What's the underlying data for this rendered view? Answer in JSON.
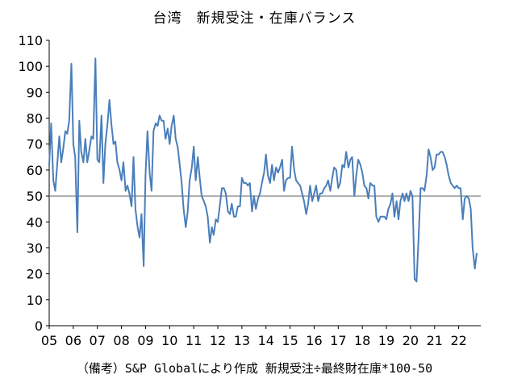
{
  "chart_data": {
    "type": "line",
    "title": "台湾　新規受注・在庫バランス",
    "note": "（備考）S&P Globalにより作成 新規受注÷最終財在庫*100-50",
    "xlabel": "",
    "ylabel": "",
    "ylim": [
      0,
      110
    ],
    "y_ticks": [
      0,
      10,
      20,
      30,
      40,
      50,
      60,
      70,
      80,
      90,
      100,
      110
    ],
    "x_tick_labels": [
      "05",
      "06",
      "07",
      "08",
      "09",
      "10",
      "11",
      "12",
      "13",
      "14",
      "15",
      "16",
      "17",
      "18",
      "19",
      "20",
      "21",
      "22"
    ],
    "x_range": [
      2005.0,
      2022.9167
    ],
    "reference_line": 50,
    "grid": false,
    "legend": "none",
    "line_color": "#4a7ebb",
    "reference_color": "#808080",
    "series": [
      {
        "color": "#4a7ebb",
        "points": [
          [
            2005.0,
            62
          ],
          [
            2005.08,
            78
          ],
          [
            2005.17,
            56
          ],
          [
            2005.25,
            52
          ],
          [
            2005.33,
            62
          ],
          [
            2005.42,
            73
          ],
          [
            2005.5,
            63
          ],
          [
            2005.58,
            68
          ],
          [
            2005.67,
            75
          ],
          [
            2005.75,
            74
          ],
          [
            2005.83,
            79
          ],
          [
            2005.92,
            101
          ],
          [
            2006.0,
            70
          ],
          [
            2006.08,
            65
          ],
          [
            2006.17,
            36
          ],
          [
            2006.25,
            79
          ],
          [
            2006.33,
            67
          ],
          [
            2006.42,
            63
          ],
          [
            2006.5,
            72
          ],
          [
            2006.58,
            63
          ],
          [
            2006.67,
            68
          ],
          [
            2006.75,
            73
          ],
          [
            2006.83,
            72
          ],
          [
            2006.92,
            103
          ],
          [
            2007.0,
            64
          ],
          [
            2007.08,
            63
          ],
          [
            2007.17,
            81
          ],
          [
            2007.25,
            55
          ],
          [
            2007.33,
            70
          ],
          [
            2007.42,
            78
          ],
          [
            2007.5,
            87
          ],
          [
            2007.58,
            78
          ],
          [
            2007.67,
            70
          ],
          [
            2007.75,
            71
          ],
          [
            2007.83,
            63
          ],
          [
            2007.92,
            60
          ],
          [
            2008.0,
            56
          ],
          [
            2008.08,
            63
          ],
          [
            2008.17,
            52
          ],
          [
            2008.25,
            54
          ],
          [
            2008.33,
            51
          ],
          [
            2008.42,
            46
          ],
          [
            2008.5,
            65
          ],
          [
            2008.58,
            45
          ],
          [
            2008.67,
            38
          ],
          [
            2008.75,
            34
          ],
          [
            2008.83,
            43
          ],
          [
            2008.92,
            23
          ],
          [
            2009.0,
            58
          ],
          [
            2009.08,
            75
          ],
          [
            2009.17,
            59
          ],
          [
            2009.25,
            52
          ],
          [
            2009.33,
            75
          ],
          [
            2009.42,
            78
          ],
          [
            2009.5,
            77
          ],
          [
            2009.58,
            81
          ],
          [
            2009.67,
            79
          ],
          [
            2009.75,
            79
          ],
          [
            2009.83,
            72
          ],
          [
            2009.92,
            76
          ],
          [
            2010.0,
            70
          ],
          [
            2010.08,
            77
          ],
          [
            2010.17,
            81
          ],
          [
            2010.25,
            72
          ],
          [
            2010.33,
            69
          ],
          [
            2010.42,
            62
          ],
          [
            2010.5,
            55
          ],
          [
            2010.58,
            45
          ],
          [
            2010.67,
            38
          ],
          [
            2010.75,
            44
          ],
          [
            2010.83,
            56
          ],
          [
            2010.92,
            61
          ],
          [
            2011.0,
            69
          ],
          [
            2011.08,
            56
          ],
          [
            2011.17,
            65
          ],
          [
            2011.25,
            57
          ],
          [
            2011.33,
            50
          ],
          [
            2011.42,
            48
          ],
          [
            2011.5,
            46
          ],
          [
            2011.58,
            42
          ],
          [
            2011.67,
            32
          ],
          [
            2011.75,
            38
          ],
          [
            2011.83,
            35
          ],
          [
            2011.92,
            41
          ],
          [
            2012.0,
            40
          ],
          [
            2012.08,
            46
          ],
          [
            2012.17,
            53
          ],
          [
            2012.25,
            53
          ],
          [
            2012.33,
            51
          ],
          [
            2012.42,
            44
          ],
          [
            2012.5,
            43
          ],
          [
            2012.58,
            47
          ],
          [
            2012.67,
            42
          ],
          [
            2012.75,
            42
          ],
          [
            2012.83,
            46
          ],
          [
            2012.92,
            46
          ],
          [
            2013.0,
            57
          ],
          [
            2013.08,
            55
          ],
          [
            2013.17,
            55
          ],
          [
            2013.25,
            54
          ],
          [
            2013.33,
            55
          ],
          [
            2013.42,
            44
          ],
          [
            2013.5,
            50
          ],
          [
            2013.58,
            45
          ],
          [
            2013.67,
            49
          ],
          [
            2013.75,
            51
          ],
          [
            2013.83,
            55
          ],
          [
            2013.92,
            59
          ],
          [
            2014.0,
            66
          ],
          [
            2014.08,
            58
          ],
          [
            2014.17,
            55
          ],
          [
            2014.25,
            62
          ],
          [
            2014.33,
            56
          ],
          [
            2014.42,
            61
          ],
          [
            2014.5,
            59
          ],
          [
            2014.58,
            61
          ],
          [
            2014.67,
            64
          ],
          [
            2014.75,
            52
          ],
          [
            2014.83,
            56
          ],
          [
            2014.92,
            57
          ],
          [
            2015.0,
            57
          ],
          [
            2015.08,
            69
          ],
          [
            2015.17,
            60
          ],
          [
            2015.25,
            56
          ],
          [
            2015.33,
            55
          ],
          [
            2015.42,
            54
          ],
          [
            2015.5,
            51
          ],
          [
            2015.58,
            48
          ],
          [
            2015.67,
            43
          ],
          [
            2015.75,
            47
          ],
          [
            2015.83,
            54
          ],
          [
            2015.92,
            48
          ],
          [
            2016.0,
            51
          ],
          [
            2016.08,
            54
          ],
          [
            2016.17,
            48
          ],
          [
            2016.25,
            51
          ],
          [
            2016.33,
            51
          ],
          [
            2016.42,
            53
          ],
          [
            2016.5,
            54
          ],
          [
            2016.58,
            56
          ],
          [
            2016.67,
            52
          ],
          [
            2016.75,
            57
          ],
          [
            2016.83,
            61
          ],
          [
            2016.92,
            60
          ],
          [
            2017.0,
            53
          ],
          [
            2017.08,
            55
          ],
          [
            2017.17,
            62
          ],
          [
            2017.25,
            61
          ],
          [
            2017.33,
            67
          ],
          [
            2017.42,
            61
          ],
          [
            2017.5,
            64
          ],
          [
            2017.58,
            65
          ],
          [
            2017.67,
            50
          ],
          [
            2017.75,
            58
          ],
          [
            2017.83,
            64
          ],
          [
            2017.92,
            62
          ],
          [
            2018.0,
            59
          ],
          [
            2018.08,
            54
          ],
          [
            2018.17,
            53
          ],
          [
            2018.25,
            49
          ],
          [
            2018.33,
            55
          ],
          [
            2018.42,
            54
          ],
          [
            2018.5,
            54
          ],
          [
            2018.58,
            42
          ],
          [
            2018.67,
            40
          ],
          [
            2018.75,
            42
          ],
          [
            2018.83,
            42
          ],
          [
            2018.92,
            42
          ],
          [
            2019.0,
            41
          ],
          [
            2019.08,
            45
          ],
          [
            2019.17,
            47
          ],
          [
            2019.25,
            51
          ],
          [
            2019.33,
            42
          ],
          [
            2019.42,
            48
          ],
          [
            2019.5,
            41
          ],
          [
            2019.58,
            48
          ],
          [
            2019.67,
            51
          ],
          [
            2019.75,
            48
          ],
          [
            2019.83,
            51
          ],
          [
            2019.92,
            48
          ],
          [
            2020.0,
            52
          ],
          [
            2020.08,
            50
          ],
          [
            2020.17,
            18
          ],
          [
            2020.25,
            17
          ],
          [
            2020.33,
            33
          ],
          [
            2020.42,
            53
          ],
          [
            2020.5,
            53
          ],
          [
            2020.58,
            52
          ],
          [
            2020.67,
            58
          ],
          [
            2020.75,
            68
          ],
          [
            2020.83,
            65
          ],
          [
            2020.92,
            60
          ],
          [
            2021.0,
            61
          ],
          [
            2021.08,
            66
          ],
          [
            2021.17,
            66
          ],
          [
            2021.25,
            67
          ],
          [
            2021.33,
            67
          ],
          [
            2021.42,
            65
          ],
          [
            2021.5,
            62
          ],
          [
            2021.58,
            58
          ],
          [
            2021.67,
            55
          ],
          [
            2021.75,
            54
          ],
          [
            2021.83,
            53
          ],
          [
            2021.92,
            54
          ],
          [
            2022.0,
            53
          ],
          [
            2022.08,
            53
          ],
          [
            2022.17,
            41
          ],
          [
            2022.25,
            49
          ],
          [
            2022.33,
            50
          ],
          [
            2022.42,
            49
          ],
          [
            2022.5,
            45
          ],
          [
            2022.58,
            30
          ],
          [
            2022.67,
            22
          ],
          [
            2022.75,
            28
          ]
        ]
      }
    ]
  }
}
